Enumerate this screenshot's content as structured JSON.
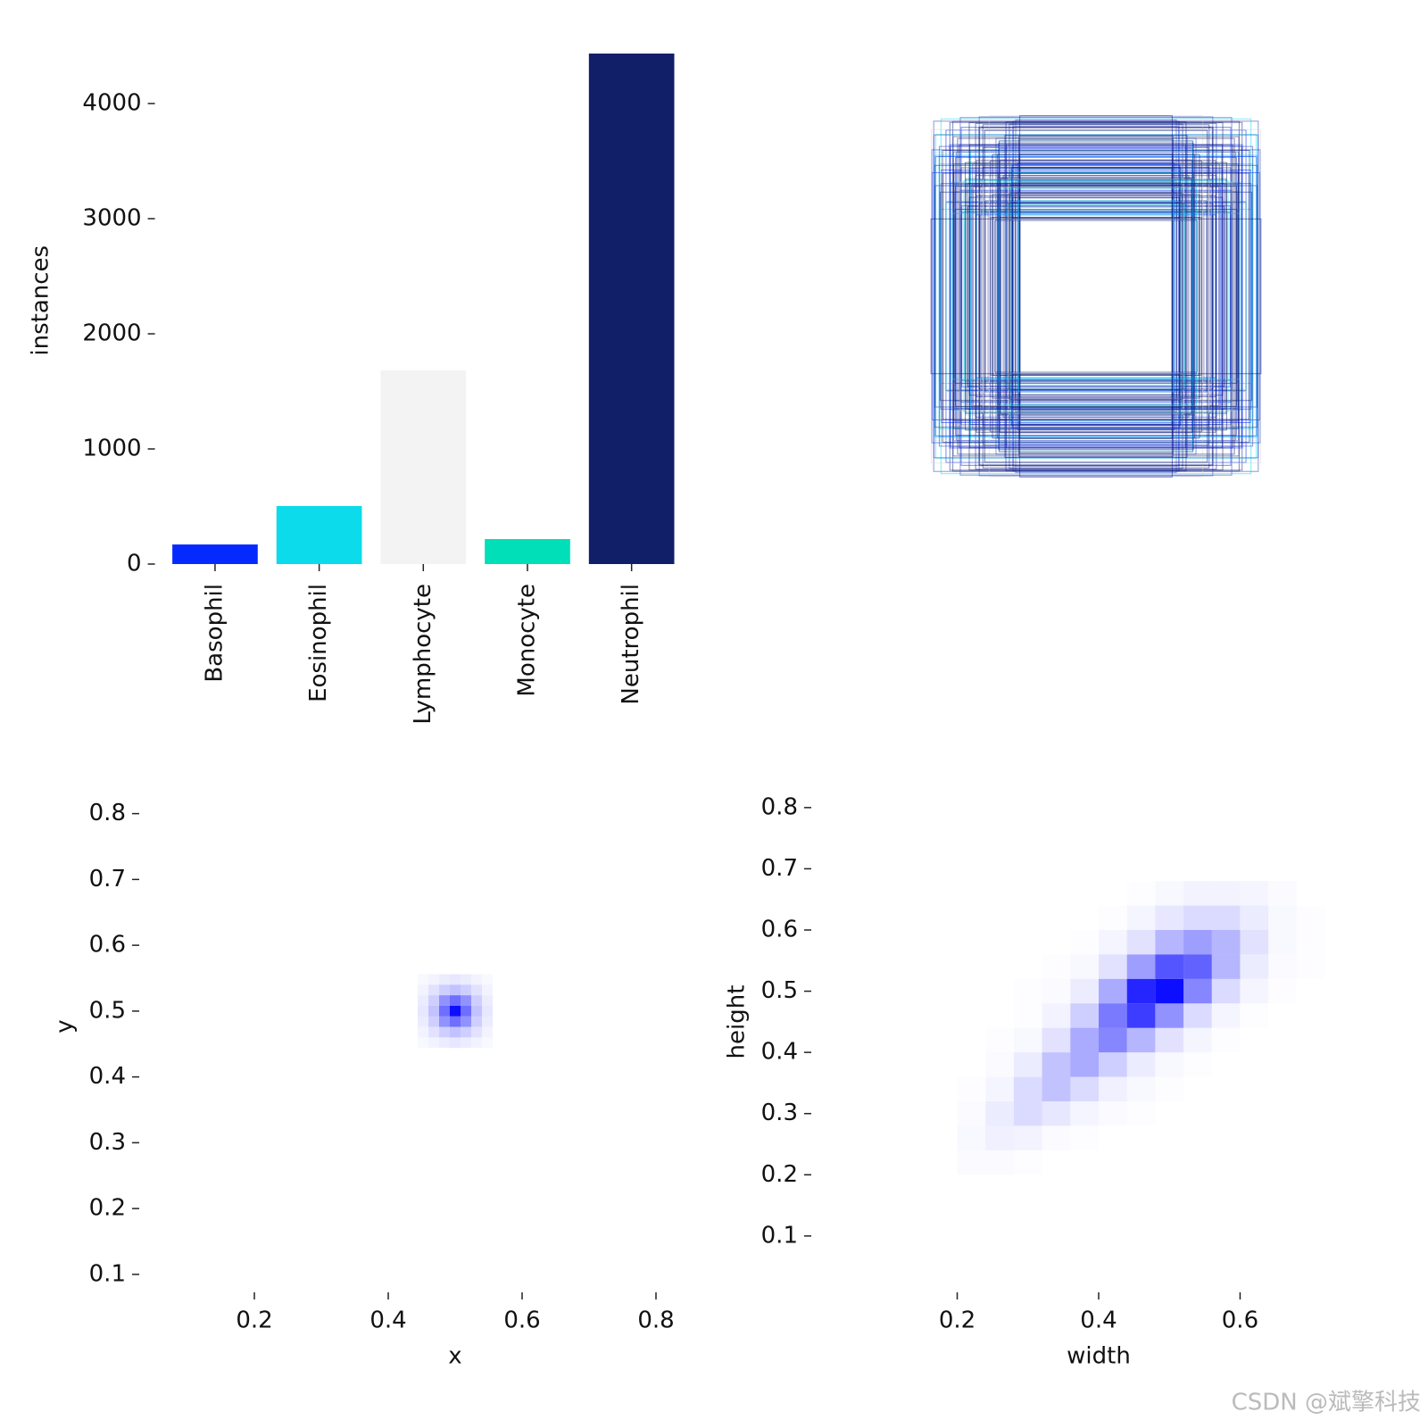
{
  "chart_data": [
    {
      "type": "bar",
      "ylabel": "instances",
      "categories": [
        "Basophil",
        "Eosinophil",
        "Lymphocyte",
        "Monocyte",
        "Neutrophil"
      ],
      "values": [
        170,
        504,
        1682,
        217,
        4434
      ],
      "colors": [
        "#042aff",
        "#0bdbeb",
        "#f3f3f3",
        "#00dfb7",
        "#111f68"
      ],
      "ylim": [
        0,
        4500
      ],
      "yticks": [
        0,
        1000,
        2000,
        3000,
        4000
      ]
    },
    {
      "type": "heatmap",
      "xlabel": "x",
      "ylabel": "y",
      "color": "#0000ff",
      "bin_size": [
        0.016,
        0.016
      ],
      "x": [
        0.452,
        0.468,
        0.484,
        0.5,
        0.516,
        0.532,
        0.548
      ],
      "y": [
        0.452,
        0.468,
        0.484,
        0.5,
        0.516,
        0.532,
        0.548
      ],
      "values": [
        [
          3,
          5,
          8,
          10,
          8,
          5,
          3
        ],
        [
          5,
          12,
          20,
          25,
          20,
          12,
          5
        ],
        [
          8,
          20,
          45,
          60,
          45,
          20,
          8
        ],
        [
          10,
          25,
          60,
          100,
          60,
          25,
          10
        ],
        [
          8,
          20,
          45,
          60,
          45,
          20,
          8
        ],
        [
          5,
          12,
          20,
          25,
          20,
          12,
          5
        ],
        [
          3,
          5,
          8,
          10,
          8,
          5,
          3
        ]
      ],
      "xlim": [
        0.04,
        0.86
      ],
      "ylim": [
        0.07,
        0.87
      ],
      "xticks": [
        0.2,
        0.4,
        0.6,
        0.8
      ],
      "yticks": [
        0.1,
        0.2,
        0.3,
        0.4,
        0.5,
        0.6,
        0.7,
        0.8
      ]
    },
    {
      "type": "heatmap",
      "xlabel": "width",
      "ylabel": "height",
      "color": "#0000ff",
      "bin_size": [
        0.04,
        0.04
      ],
      "x": [
        0.22,
        0.26,
        0.3,
        0.34,
        0.38,
        0.42,
        0.46,
        0.5,
        0.54,
        0.58,
        0.62,
        0.66,
        0.7
      ],
      "y": [
        0.22,
        0.26,
        0.3,
        0.34,
        0.38,
        0.42,
        0.46,
        0.5,
        0.54,
        0.58,
        0.62,
        0.66
      ],
      "values": [
        [
          2,
          2,
          1,
          0,
          0,
          0,
          0,
          0,
          0,
          0,
          0,
          0,
          0
        ],
        [
          3,
          6,
          5,
          2,
          1,
          0,
          0,
          0,
          0,
          0,
          0,
          0,
          0
        ],
        [
          2,
          8,
          15,
          10,
          4,
          2,
          1,
          0,
          0,
          0,
          0,
          0,
          0
        ],
        [
          1,
          4,
          15,
          25,
          15,
          6,
          3,
          1,
          0,
          0,
          0,
          0,
          0
        ],
        [
          0,
          2,
          8,
          25,
          35,
          20,
          8,
          3,
          1,
          0,
          0,
          0,
          0
        ],
        [
          0,
          1,
          3,
          12,
          35,
          50,
          30,
          12,
          4,
          1,
          0,
          0,
          0
        ],
        [
          0,
          0,
          1,
          5,
          20,
          55,
          80,
          45,
          15,
          4,
          1,
          0,
          0
        ],
        [
          0,
          0,
          1,
          2,
          8,
          35,
          90,
          100,
          50,
          15,
          4,
          1,
          0
        ],
        [
          0,
          0,
          0,
          1,
          3,
          12,
          40,
          70,
          65,
          30,
          8,
          2,
          1
        ],
        [
          0,
          0,
          0,
          0,
          1,
          4,
          12,
          30,
          40,
          30,
          12,
          3,
          1
        ],
        [
          0,
          0,
          0,
          0,
          0,
          1,
          4,
          10,
          15,
          15,
          8,
          3,
          1
        ],
        [
          0,
          0,
          0,
          0,
          0,
          0,
          1,
          3,
          5,
          5,
          4,
          2,
          0
        ]
      ],
      "xlim": [
        0.005,
        0.79
      ],
      "ylim": [
        0.005,
        0.88
      ],
      "xticks": [
        0.2,
        0.4,
        0.6
      ],
      "yticks": [
        0.1,
        0.2,
        0.3,
        0.4,
        0.5,
        0.6,
        0.7,
        0.8
      ]
    }
  ],
  "watermark": "CSDN @斌擎科技"
}
